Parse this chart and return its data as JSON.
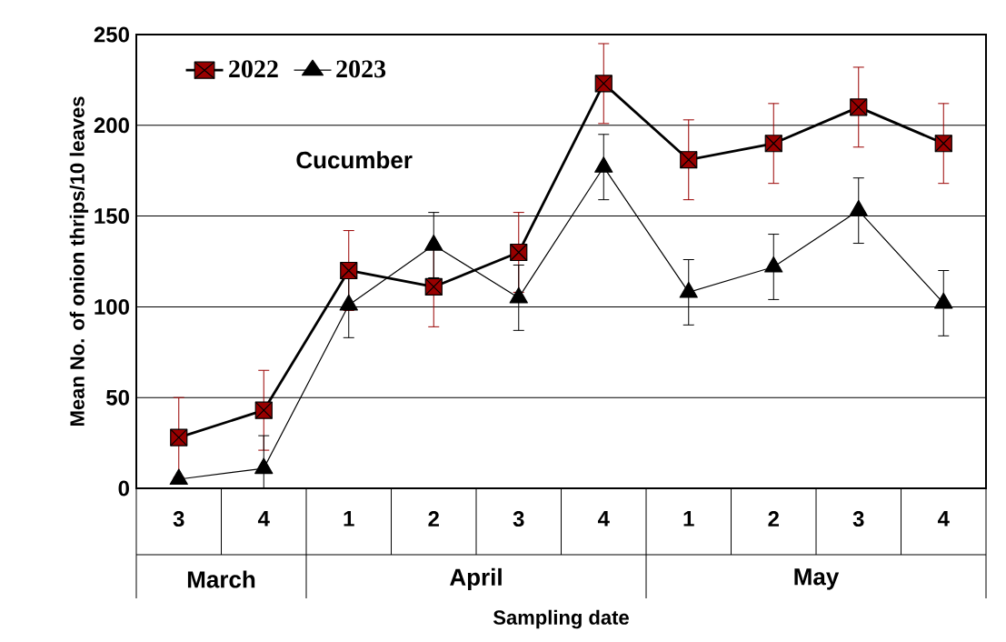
{
  "chart_data": {
    "type": "line",
    "ylabel": "Mean No. of onion thrips/10 leaves",
    "xlabel": "Sampling date",
    "categories": [
      "3",
      "4",
      "1",
      "2",
      "3",
      "4",
      "1",
      "2",
      "3",
      "4"
    ],
    "annotations": [
      "Cucumber",
      "March",
      "April",
      "May"
    ],
    "series": [
      {
        "name": "2022",
        "color": "#990000",
        "marker": "square",
        "values": [
          28,
          43,
          120,
          111,
          130,
          223,
          181,
          190,
          210,
          190
        ],
        "errors": [
          22,
          22,
          22,
          22,
          22,
          22,
          22,
          22,
          22,
          22
        ]
      },
      {
        "name": "2023",
        "color": "#000000",
        "marker": "triangle",
        "values": [
          5,
          11,
          101,
          134,
          105,
          177,
          108,
          122,
          153,
          102
        ],
        "errors": [
          null,
          [
            0,
            29
          ],
          18,
          18,
          18,
          18,
          18,
          18,
          18,
          18
        ]
      }
    ],
    "ylim": [
      0,
      250
    ],
    "yticks": [
      0,
      50,
      100,
      150,
      200,
      250
    ],
    "grid": "y",
    "legend": "top left"
  }
}
